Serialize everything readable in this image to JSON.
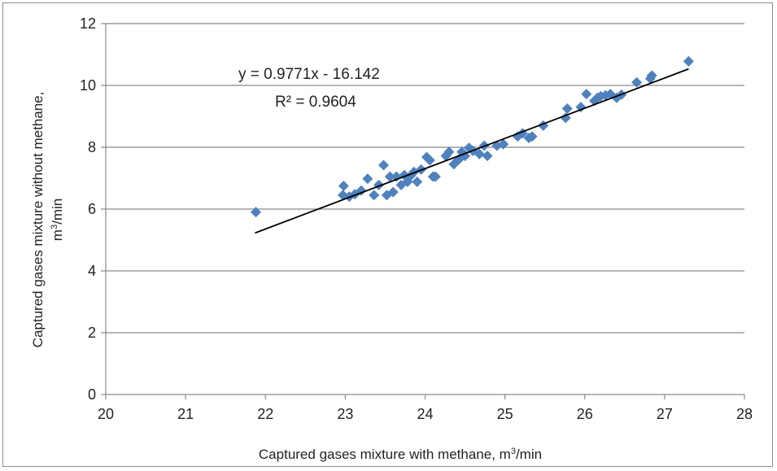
{
  "chart_data": {
    "type": "scatter",
    "xlabel": "Captured gases mixture with methane, m",
    "xlabel_sup": "3",
    "xlabel_tail": "/min",
    "ylabel_line1": "Captured gases mixture without methane,",
    "ylabel_line2_pre": "m",
    "ylabel_line2_sup": "3",
    "ylabel_line2_post": "/min",
    "xlim": [
      20,
      28
    ],
    "ylim": [
      0,
      12
    ],
    "xticks": [
      20,
      21,
      22,
      23,
      24,
      25,
      26,
      27,
      28
    ],
    "yticks": [
      0,
      2,
      4,
      6,
      8,
      10,
      12
    ],
    "grid": "horizontal",
    "marker_color": "#4f81bd",
    "trendline": {
      "slope": 0.9771,
      "intercept": -16.142,
      "x_range": [
        21.87,
        27.3
      ],
      "color": "#000000",
      "equation": "y = 0.9771x - 16.142",
      "r2_label": "R² = 0.9604"
    },
    "points": [
      [
        21.88,
        5.9
      ],
      [
        22.97,
        6.45
      ],
      [
        22.98,
        6.75
      ],
      [
        23.05,
        6.4
      ],
      [
        23.12,
        6.48
      ],
      [
        23.2,
        6.6
      ],
      [
        23.28,
        6.98
      ],
      [
        23.36,
        6.45
      ],
      [
        23.42,
        6.78
      ],
      [
        23.48,
        7.42
      ],
      [
        23.52,
        6.45
      ],
      [
        23.56,
        7.05
      ],
      [
        23.6,
        6.55
      ],
      [
        23.64,
        7.05
      ],
      [
        23.7,
        6.78
      ],
      [
        23.74,
        7.1
      ],
      [
        23.78,
        6.88
      ],
      [
        23.82,
        7.08
      ],
      [
        23.86,
        7.2
      ],
      [
        23.9,
        6.88
      ],
      [
        23.95,
        7.28
      ],
      [
        24.02,
        7.68
      ],
      [
        24.06,
        7.58
      ],
      [
        24.1,
        7.05
      ],
      [
        24.13,
        7.05
      ],
      [
        24.26,
        7.72
      ],
      [
        24.3,
        7.85
      ],
      [
        24.36,
        7.45
      ],
      [
        24.42,
        7.6
      ],
      [
        24.46,
        7.85
      ],
      [
        24.5,
        7.72
      ],
      [
        24.55,
        7.98
      ],
      [
        24.6,
        7.88
      ],
      [
        24.68,
        7.78
      ],
      [
        24.74,
        8.05
      ],
      [
        24.78,
        7.72
      ],
      [
        24.9,
        8.05
      ],
      [
        24.98,
        8.1
      ],
      [
        25.16,
        8.35
      ],
      [
        25.22,
        8.45
      ],
      [
        25.3,
        8.3
      ],
      [
        25.34,
        8.35
      ],
      [
        25.48,
        8.7
      ],
      [
        25.76,
        8.95
      ],
      [
        25.78,
        9.25
      ],
      [
        25.95,
        9.3
      ],
      [
        26.02,
        9.72
      ],
      [
        26.12,
        9.5
      ],
      [
        26.16,
        9.6
      ],
      [
        26.2,
        9.65
      ],
      [
        26.26,
        9.68
      ],
      [
        26.32,
        9.72
      ],
      [
        26.4,
        9.6
      ],
      [
        26.46,
        9.7
      ],
      [
        26.65,
        10.1
      ],
      [
        26.82,
        10.22
      ],
      [
        26.84,
        10.32
      ],
      [
        27.3,
        10.78
      ]
    ]
  }
}
